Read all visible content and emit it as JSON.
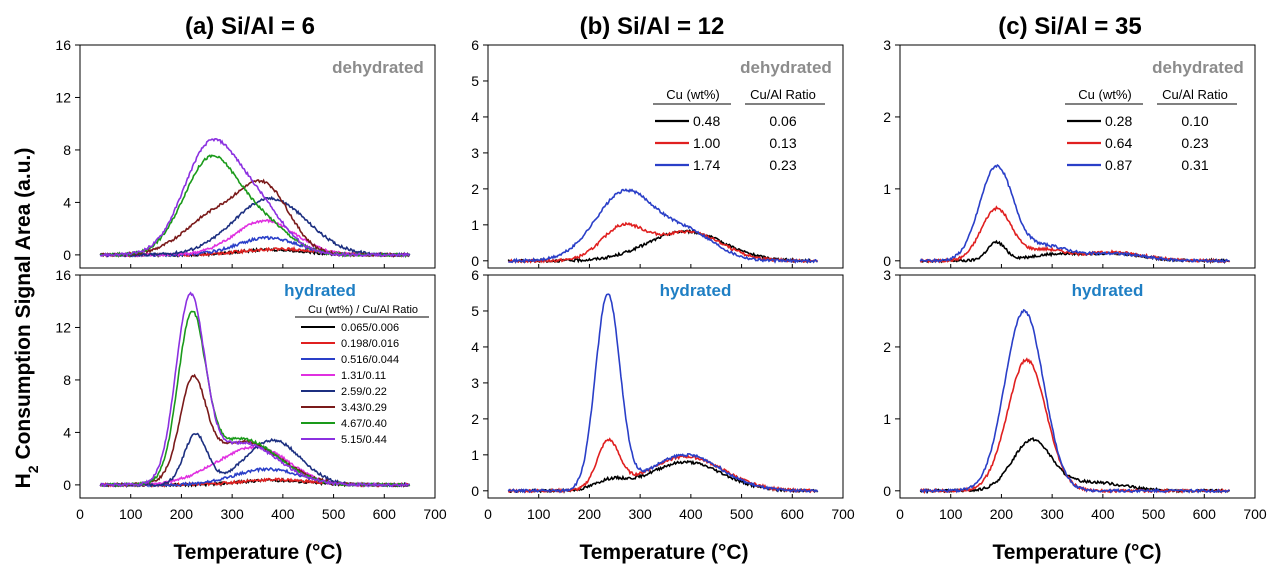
{
  "figure": {
    "ylabel_main": "H",
    "ylabel_sub": "2",
    "ylabel_rest": " Consumption Signal Area (a.u.)"
  },
  "chart_data": [
    {
      "id": "a",
      "type": "line",
      "title": "(a) Si/Al = 6",
      "xlabel": "Temperature (°C)",
      "xlim": [
        0,
        700
      ],
      "xticks": [
        0,
        100,
        200,
        300,
        400,
        500,
        600,
        700
      ],
      "panels": [
        {
          "state": "dehydrated",
          "ylim": [
            -1,
            16
          ],
          "yticks": [
            0,
            4,
            8,
            12,
            16
          ],
          "legend": null,
          "series": [
            {
              "color": "#000000",
              "peaks": [
                [
                  380,
                  0.4,
                  65
                ]
              ]
            },
            {
              "color": "#e02020",
              "peaks": [
                [
                  395,
                  0.45,
                  75
                ]
              ]
            },
            {
              "color": "#2a3fc8",
              "peaks": [
                [
                  370,
                  1.3,
                  60
                ]
              ]
            },
            {
              "color": "#e030e0",
              "peaks": [
                [
                  365,
                  2.6,
                  60
                ]
              ]
            },
            {
              "color": "#1c2f80",
              "peaks": [
                [
                  375,
                  4.3,
                  72
                ]
              ]
            },
            {
              "color": "#7a1a1a",
              "peaks": [
                [
                  270,
                  3.1,
                  62
                ],
                [
                  368,
                  4.6,
                  48
                ]
              ]
            },
            {
              "color": "#1a9a1a",
              "peaks": [
                [
                  255,
                  7.0,
                  52
                ],
                [
                  355,
                  2.5,
                  55
                ]
              ]
            },
            {
              "color": "#8b30e0",
              "peaks": [
                [
                  255,
                  8.0,
                  52
                ],
                [
                  350,
                  3.6,
                  52
                ]
              ]
            }
          ]
        },
        {
          "state": "hydrated",
          "ylim": [
            -1,
            16
          ],
          "yticks": [
            0,
            4,
            8,
            12,
            16
          ],
          "legend": {
            "header": "Cu (wt%) / Cu/Al Ratio",
            "entries": [
              "0.065/0.006",
              "0.198/0.016",
              "0.516/0.044",
              "1.31/0.11",
              "2.59/0.22",
              "3.43/0.29",
              "4.67/0.40",
              "5.15/0.44"
            ]
          },
          "series": [
            {
              "color": "#000000",
              "peaks": [
                [
                  380,
                  0.35,
                  65
                ]
              ]
            },
            {
              "color": "#e02020",
              "peaks": [
                [
                  385,
                  0.4,
                  70
                ]
              ]
            },
            {
              "color": "#2a3fc8",
              "peaks": [
                [
                  370,
                  1.2,
                  65
                ]
              ]
            },
            {
              "color": "#e030e0",
              "peaks": [
                [
                  280,
                  1.0,
                  60
                ],
                [
                  360,
                  2.4,
                  60
                ]
              ]
            },
            {
              "color": "#1c2f80",
              "peaks": [
                [
                  228,
                  3.8,
                  23
                ],
                [
                  380,
                  3.4,
                  55
                ]
              ]
            },
            {
              "color": "#7a1a1a",
              "peaks": [
                [
                  222,
                  6.9,
                  25
                ],
                [
                  320,
                  3.3,
                  75
                ]
              ]
            },
            {
              "color": "#1a9a1a",
              "peaks": [
                [
                  220,
                  12.0,
                  27
                ],
                [
                  320,
                  3.5,
                  70
                ]
              ]
            },
            {
              "color": "#8b30e0",
              "peaks": [
                [
                  217,
                  13.5,
                  28
                ],
                [
                  320,
                  3.2,
                  70
                ]
              ]
            }
          ]
        }
      ]
    },
    {
      "id": "b",
      "type": "line",
      "title": "(b) Si/Al = 12",
      "xlabel": "Temperature (°C)",
      "xlim": [
        0,
        700
      ],
      "xticks": [
        0,
        100,
        200,
        300,
        400,
        500,
        600,
        700
      ],
      "panels": [
        {
          "state": "dehydrated",
          "ylim": [
            -0.2,
            6
          ],
          "yticks": [
            0,
            1,
            2,
            3,
            4,
            5,
            6
          ],
          "legend": {
            "col1_header": "Cu (wt%)",
            "col2_header": "Cu/Al Ratio",
            "rows": [
              [
                "0.48",
                "0.06"
              ],
              [
                "1.00",
                "0.13"
              ],
              [
                "1.74",
                "0.23"
              ]
            ]
          },
          "series": [
            {
              "color": "#000000",
              "peaks": [
                [
                  390,
                  0.82,
                  75
                ]
              ]
            },
            {
              "color": "#e02020",
              "peaks": [
                [
                  265,
                  0.9,
                  42
                ],
                [
                  395,
                  0.8,
                  65
                ]
              ]
            },
            {
              "color": "#2a3fc8",
              "peaks": [
                [
                  270,
                  1.9,
                  58
                ],
                [
                  395,
                  0.75,
                  55
                ]
              ]
            }
          ]
        },
        {
          "state": "hydrated",
          "ylim": [
            -0.2,
            6
          ],
          "yticks": [
            0,
            1,
            2,
            3,
            4,
            5,
            6
          ],
          "legend": null,
          "series": [
            {
              "color": "#000000",
              "peaks": [
                [
                  240,
                  0.25,
                  30
                ],
                [
                  390,
                  0.8,
                  72
                ]
              ]
            },
            {
              "color": "#e02020",
              "peaks": [
                [
                  237,
                  1.3,
                  22
                ],
                [
                  390,
                  0.95,
                  75
                ]
              ]
            },
            {
              "color": "#2a3fc8",
              "peaks": [
                [
                  236,
                  5.4,
                  24
                ],
                [
                  390,
                  1.0,
                  70
                ]
              ]
            }
          ]
        }
      ]
    },
    {
      "id": "c",
      "type": "line",
      "title": "(c) Si/Al = 35",
      "xlabel": "Temperature (°C)",
      "xlim": [
        0,
        700
      ],
      "xticks": [
        0,
        100,
        200,
        300,
        400,
        500,
        600,
        700
      ],
      "panels": [
        {
          "state": "dehydrated",
          "ylim": [
            -0.1,
            3
          ],
          "yticks": [
            0,
            1,
            2,
            3
          ],
          "legend": {
            "col1_header": "Cu  (wt%)",
            "col2_header": "Cu/Al Ratio",
            "rows": [
              [
                "0.28",
                "0.10"
              ],
              [
                "0.64",
                "0.23"
              ],
              [
                "0.87",
                "0.31"
              ]
            ]
          },
          "series": [
            {
              "color": "#000000",
              "peaks": [
                [
                  190,
                  0.25,
                  18
                ],
                [
                  300,
                  0.08,
                  50
                ],
                [
                  420,
                  0.1,
                  60
                ]
              ]
            },
            {
              "color": "#e02020",
              "peaks": [
                [
                  190,
                  0.72,
                  30
                ],
                [
                  285,
                  0.15,
                  40
                ],
                [
                  420,
                  0.12,
                  60
                ]
              ]
            },
            {
              "color": "#2a3fc8",
              "peaks": [
                [
                  190,
                  1.3,
                  33
                ],
                [
                  285,
                  0.2,
                  45
                ],
                [
                  420,
                  0.1,
                  60
                ]
              ]
            }
          ]
        },
        {
          "state": "hydrated",
          "ylim": [
            -0.1,
            3
          ],
          "yticks": [
            0,
            1,
            2,
            3
          ],
          "legend": null,
          "series": [
            {
              "color": "#000000",
              "peaks": [
                [
                  260,
                  0.7,
                  38
                ],
                [
                  380,
                  0.12,
                  60
                ]
              ]
            },
            {
              "color": "#e02020",
              "peaks": [
                [
                  250,
                  1.82,
                  38
                ]
              ]
            },
            {
              "color": "#2a3fc8",
              "peaks": [
                [
                  245,
                  2.5,
                  38
                ]
              ]
            }
          ]
        }
      ]
    }
  ]
}
